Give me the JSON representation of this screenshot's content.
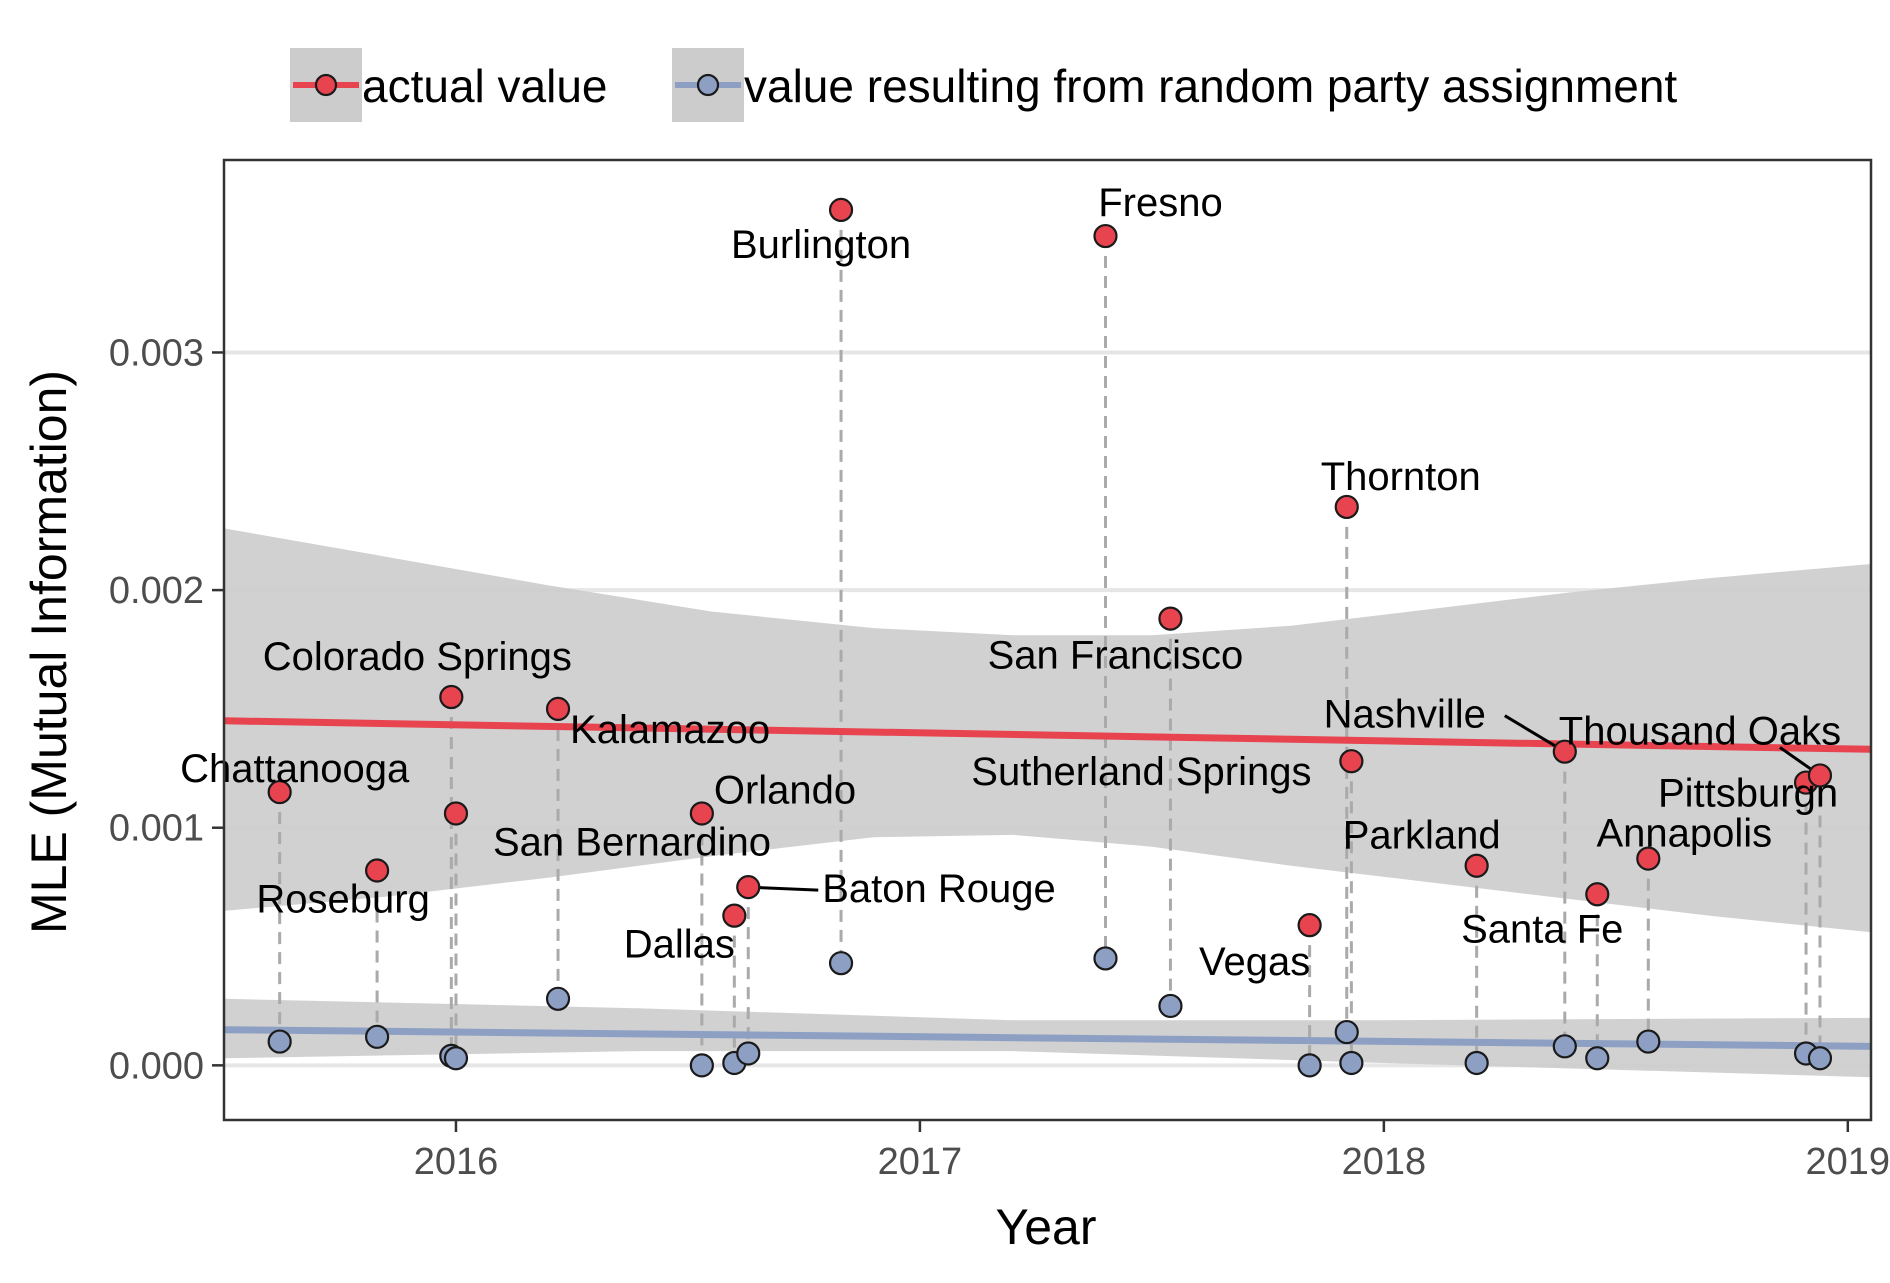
{
  "legend": {
    "actual_label": "actual value",
    "random_label": "value resulting from random party assignment"
  },
  "colors": {
    "actual": "#e8444f",
    "random": "#8da0c4",
    "ribbon": "#cccccc",
    "grid": "#e6e6e6",
    "connector": "#aaaaaa"
  },
  "chart_data": {
    "type": "scatter",
    "title": "",
    "xlabel": "Year",
    "ylabel": "MLE (Mutual Information)",
    "xlim": [
      2015.5,
      2019.05
    ],
    "ylim": [
      -0.00023,
      0.00381
    ],
    "x_ticks": [
      2016,
      2017,
      2018,
      2019
    ],
    "x_tick_labels": [
      "2016",
      "2017",
      "2018",
      "2019"
    ],
    "y_ticks": [
      0,
      0.001,
      0.002,
      0.003
    ],
    "y_tick_labels": [
      "0.000",
      "0.001",
      "0.002",
      "0.003"
    ],
    "grid": true,
    "legend_position": "top",
    "series": [
      {
        "name": "actual value",
        "points": [
          {
            "label": "Chattanooga",
            "x": 2015.62,
            "y": 0.00115
          },
          {
            "label": "Roseburg",
            "x": 2015.83,
            "y": 0.00082
          },
          {
            "label": "Colorado Springs",
            "x": 2015.99,
            "y": 0.00155
          },
          {
            "label": "San Bernardino",
            "x": 2016.0,
            "y": 0.00106
          },
          {
            "label": "Kalamazoo",
            "x": 2016.22,
            "y": 0.0015
          },
          {
            "label": "Orlando",
            "x": 2016.53,
            "y": 0.00106
          },
          {
            "label": "Dallas",
            "x": 2016.6,
            "y": 0.00063
          },
          {
            "label": "Baton Rouge",
            "x": 2016.63,
            "y": 0.00075
          },
          {
            "label": "Burlington",
            "x": 2016.83,
            "y": 0.0036
          },
          {
            "label": "Fresno",
            "x": 2017.4,
            "y": 0.00349
          },
          {
            "label": "San Francisco",
            "x": 2017.54,
            "y": 0.00188
          },
          {
            "label": "Vegas",
            "x": 2017.84,
            "y": 0.00059
          },
          {
            "label": "Thornton",
            "x": 2017.92,
            "y": 0.00235
          },
          {
            "label": "Sutherland Springs",
            "x": 2017.93,
            "y": 0.00128
          },
          {
            "label": "Parkland",
            "x": 2018.2,
            "y": 0.00084
          },
          {
            "label": "Nashville",
            "x": 2018.39,
            "y": 0.00132
          },
          {
            "label": "Santa Fe",
            "x": 2018.46,
            "y": 0.00072
          },
          {
            "label": "Annapolis",
            "x": 2018.57,
            "y": 0.00087
          },
          {
            "label": "Pittsburgh",
            "x": 2018.91,
            "y": 0.00119
          },
          {
            "label": "Thousand Oaks",
            "x": 2018.94,
            "y": 0.00122
          }
        ],
        "trend": [
          [
            2015.5,
            0.00145
          ],
          [
            2019.05,
            0.00133
          ]
        ],
        "ribbon": [
          [
            2015.5,
            0.00065,
            0.00226
          ],
          [
            2015.85,
            0.00071,
            0.00214
          ],
          [
            2016.2,
            0.00079,
            0.00202
          ],
          [
            2016.55,
            0.00088,
            0.00191
          ],
          [
            2016.9,
            0.00096,
            0.00184
          ],
          [
            2017.2,
            0.00097,
            0.00181
          ],
          [
            2017.5,
            0.00092,
            0.00181
          ],
          [
            2017.8,
            0.00084,
            0.00185
          ],
          [
            2018.1,
            0.00077,
            0.00192
          ],
          [
            2018.4,
            0.0007,
            0.00199
          ],
          [
            2018.7,
            0.00063,
            0.00205
          ],
          [
            2019.05,
            0.00056,
            0.00211
          ]
        ]
      },
      {
        "name": "value resulting from random party assignment",
        "points": [
          {
            "x": 2015.62,
            "y": 0.0001
          },
          {
            "x": 2015.83,
            "y": 0.00012
          },
          {
            "x": 2015.99,
            "y": 4e-05
          },
          {
            "x": 2016.0,
            "y": 3e-05
          },
          {
            "x": 2016.22,
            "y": 0.00028
          },
          {
            "x": 2016.53,
            "y": 0.0
          },
          {
            "x": 2016.6,
            "y": 1e-05
          },
          {
            "x": 2016.63,
            "y": 5e-05
          },
          {
            "x": 2016.83,
            "y": 0.00043
          },
          {
            "x": 2017.4,
            "y": 0.00045
          },
          {
            "x": 2017.54,
            "y": 0.00025
          },
          {
            "x": 2017.84,
            "y": 0.0
          },
          {
            "x": 2017.92,
            "y": 0.00014
          },
          {
            "x": 2017.93,
            "y": 1e-05
          },
          {
            "x": 2018.2,
            "y": 1e-05
          },
          {
            "x": 2018.39,
            "y": 8e-05
          },
          {
            "x": 2018.46,
            "y": 3e-05
          },
          {
            "x": 2018.57,
            "y": 0.0001
          },
          {
            "x": 2018.91,
            "y": 5e-05
          },
          {
            "x": 2018.94,
            "y": 3e-05
          }
        ],
        "trend": [
          [
            2015.5,
            0.00015
          ],
          [
            2019.05,
            8e-05
          ]
        ],
        "ribbon": [
          [
            2015.5,
            3e-05,
            0.00028
          ],
          [
            2016.4,
            6e-05,
            0.00024
          ],
          [
            2017.2,
            6e-05,
            0.00019
          ],
          [
            2018.0,
            1e-05,
            0.00019
          ],
          [
            2019.05,
            -5e-05,
            0.0002
          ]
        ]
      }
    ]
  }
}
